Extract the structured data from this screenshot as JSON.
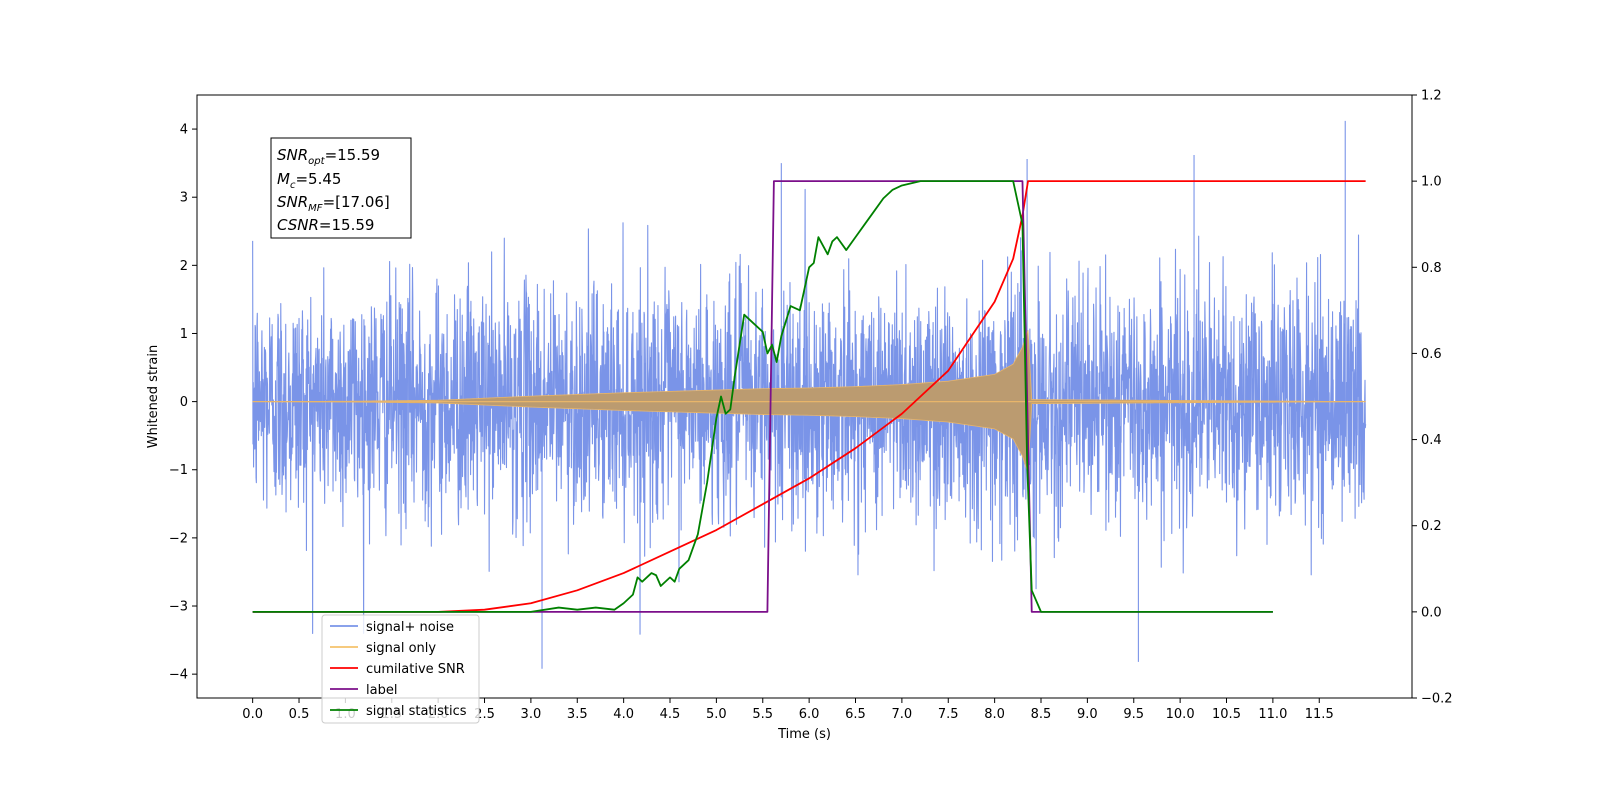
{
  "chart_data": {
    "type": "line",
    "xlabel": "Time (s)",
    "ylabel": "Whitened strain",
    "xlim": [
      -0.6,
      12.5
    ],
    "ylim_left": [
      -4.35,
      4.5
    ],
    "ylim_right": [
      -0.2,
      1.2
    ],
    "x_ticks": [
      "0.0",
      "0.5",
      "1.0",
      "1.5",
      "2.0",
      "2.5",
      "3.0",
      "3.5",
      "4.0",
      "4.5",
      "5.0",
      "5.5",
      "6.0",
      "6.5",
      "7.0",
      "7.5",
      "8.0",
      "8.5",
      "9.0",
      "9.5",
      "10.0",
      "10.5",
      "11.0",
      "11.5"
    ],
    "y_ticks_left": [
      "4",
      "3",
      "2",
      "1",
      "0",
      "−1",
      "−2",
      "−3",
      "−4"
    ],
    "y_ticks_right": [
      "1.2",
      "1.0",
      "0.8",
      "0.6",
      "0.4",
      "0.2",
      "0.0",
      "−0.2"
    ],
    "grid": false,
    "legend_position": "lower-left",
    "annotation": {
      "lines": [
        {
          "sym": "SNR",
          "sub": "opt",
          "val": "=15.59"
        },
        {
          "sym": "M",
          "sub": "c",
          "val": "=5.45"
        },
        {
          "sym": "SNR",
          "sub": "MF",
          "val": "=[17.06]"
        },
        {
          "sym": "CSNR",
          "sub": "",
          "val": "=15.59"
        }
      ]
    },
    "series": [
      {
        "name": "signal+ noise",
        "axis": "left",
        "color": "#7a94e8",
        "description": "whitened noise plus signal, about 0 to 12 s, values typically within ±2.5 with spikes to about +4.1 and -3.9",
        "x_range": [
          0.0,
          12.0
        ],
        "envelope": [
          -3.9,
          4.1
        ]
      },
      {
        "name": "signal only",
        "axis": "left",
        "color": "#f5c26b",
        "description": "chirp signal, amplitude growing from ~0 at 2 s to ~1.05 at 8.35 s, then ~0",
        "x": [
          0.0,
          1.0,
          2.0,
          3.0,
          4.0,
          5.0,
          5.5,
          6.0,
          6.5,
          7.0,
          7.5,
          8.0,
          8.2,
          8.3,
          8.36,
          8.4,
          12.0
        ],
        "amplitude": [
          0.0,
          0.005,
          0.02,
          0.08,
          0.13,
          0.17,
          0.19,
          0.2,
          0.22,
          0.25,
          0.3,
          0.4,
          0.55,
          0.8,
          1.05,
          0.03,
          0.0
        ]
      },
      {
        "name": "cumilative SNR",
        "axis": "right",
        "color": "#ff0000",
        "x": [
          0.0,
          1.0,
          2.0,
          2.5,
          3.0,
          3.5,
          4.0,
          4.5,
          5.0,
          5.5,
          6.0,
          6.5,
          7.0,
          7.5,
          8.0,
          8.2,
          8.3,
          8.36,
          8.4,
          12.0
        ],
        "values": [
          0.0,
          0.0,
          0.0,
          0.005,
          0.02,
          0.05,
          0.09,
          0.14,
          0.19,
          0.25,
          0.31,
          0.38,
          0.46,
          0.56,
          0.72,
          0.82,
          0.92,
          1.0,
          1.0,
          1.0
        ]
      },
      {
        "name": "label",
        "axis": "right",
        "color": "#7b0f8a",
        "x": [
          0.0,
          5.55,
          5.62,
          8.3,
          8.4,
          11.0
        ],
        "values": [
          0.0,
          0.0,
          1.0,
          1.0,
          0.0,
          0.0
        ]
      },
      {
        "name": "signal statistics",
        "axis": "right",
        "color": "#008000",
        "x": [
          0.0,
          3.0,
          3.3,
          3.5,
          3.7,
          3.9,
          4.0,
          4.1,
          4.15,
          4.2,
          4.3,
          4.35,
          4.4,
          4.5,
          4.55,
          4.6,
          4.7,
          4.8,
          4.9,
          5.0,
          5.05,
          5.1,
          5.15,
          5.2,
          5.3,
          5.4,
          5.5,
          5.55,
          5.6,
          5.65,
          5.7,
          5.8,
          5.9,
          6.0,
          6.05,
          6.1,
          6.2,
          6.25,
          6.3,
          6.4,
          6.5,
          6.6,
          6.7,
          6.8,
          6.9,
          7.0,
          7.2,
          7.5,
          7.8,
          8.0,
          8.2,
          8.3,
          8.35,
          8.4,
          8.5,
          11.0
        ],
        "values": [
          0.0,
          0.0,
          0.01,
          0.005,
          0.01,
          0.005,
          0.02,
          0.04,
          0.08,
          0.07,
          0.09,
          0.085,
          0.06,
          0.08,
          0.07,
          0.1,
          0.12,
          0.18,
          0.3,
          0.45,
          0.5,
          0.46,
          0.47,
          0.55,
          0.69,
          0.67,
          0.65,
          0.6,
          0.62,
          0.58,
          0.64,
          0.71,
          0.7,
          0.8,
          0.81,
          0.87,
          0.83,
          0.86,
          0.87,
          0.84,
          0.87,
          0.9,
          0.93,
          0.96,
          0.98,
          0.99,
          1.0,
          1.0,
          1.0,
          1.0,
          1.0,
          0.9,
          0.35,
          0.05,
          0.0,
          0.0
        ]
      }
    ]
  }
}
